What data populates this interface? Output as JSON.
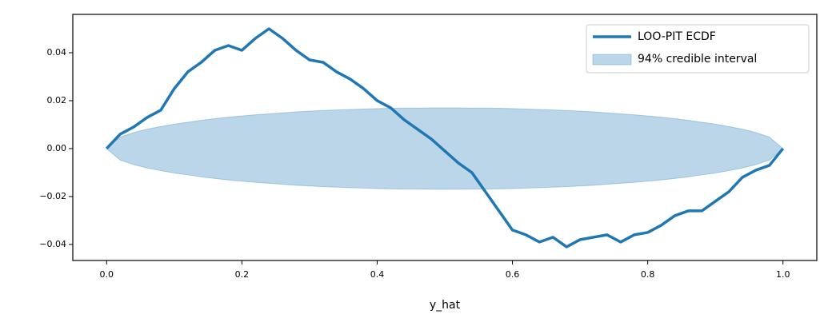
{
  "chart_data": {
    "type": "line_band",
    "x_label": "y_hat",
    "x": [
      0,
      0.02,
      0.04,
      0.06,
      0.08,
      0.1,
      0.12,
      0.14,
      0.16,
      0.18,
      0.2,
      0.22,
      0.24,
      0.26,
      0.28,
      0.3,
      0.32,
      0.34,
      0.36,
      0.38,
      0.4,
      0.42,
      0.44,
      0.46,
      0.48,
      0.5,
      0.52,
      0.54,
      0.56,
      0.58,
      0.6,
      0.62,
      0.64,
      0.66,
      0.68,
      0.7,
      0.72,
      0.74,
      0.76,
      0.78,
      0.8,
      0.82,
      0.84,
      0.86,
      0.88,
      0.9,
      0.92,
      0.94,
      0.96,
      0.98,
      1
    ],
    "series": [
      {
        "name": "LOO-PIT ECDF",
        "color": "#1f77b4",
        "values": [
          0,
          0.006,
          0.009,
          0.013,
          0.016,
          0.025,
          0.032,
          0.036,
          0.041,
          0.043,
          0.041,
          0.046,
          0.05,
          0.046,
          0.041,
          0.037,
          0.036,
          0.032,
          0.029,
          0.025,
          0.02,
          0.017,
          0.012,
          0.008,
          0.004,
          -0.001,
          -0.006,
          -0.01,
          -0.018,
          -0.026,
          -0.034,
          -0.036,
          -0.039,
          -0.037,
          -0.041,
          -0.038,
          -0.037,
          -0.036,
          -0.039,
          -0.036,
          -0.035,
          -0.032,
          -0.028,
          -0.026,
          -0.026,
          -0.022,
          -0.018,
          -0.012,
          -0.009,
          -0.007,
          0
        ]
      },
      {
        "name": "94% credible interval",
        "color": "#1f77b4",
        "upper": [
          0,
          0.0048,
          0.0067,
          0.0081,
          0.0092,
          0.0102,
          0.011,
          0.0118,
          0.0125,
          0.0131,
          0.0136,
          0.0141,
          0.0145,
          0.0149,
          0.0153,
          0.0156,
          0.0159,
          0.0161,
          0.0163,
          0.0165,
          0.0167,
          0.0168,
          0.0169,
          0.0169,
          0.017,
          0.017,
          0.017,
          0.0169,
          0.0169,
          0.0168,
          0.0167,
          0.0165,
          0.0163,
          0.0161,
          0.0159,
          0.0156,
          0.0153,
          0.0149,
          0.0145,
          0.0141,
          0.0136,
          0.0131,
          0.0125,
          0.0118,
          0.011,
          0.0102,
          0.0092,
          0.0081,
          0.0067,
          0.0048,
          0
        ],
        "lower": [
          0,
          -0.0048,
          -0.0067,
          -0.0081,
          -0.0092,
          -0.0102,
          -0.011,
          -0.0118,
          -0.0125,
          -0.0131,
          -0.0136,
          -0.0141,
          -0.0145,
          -0.0149,
          -0.0153,
          -0.0156,
          -0.0159,
          -0.0161,
          -0.0163,
          -0.0165,
          -0.0167,
          -0.0168,
          -0.0169,
          -0.0169,
          -0.017,
          -0.017,
          -0.017,
          -0.0169,
          -0.0169,
          -0.0168,
          -0.0167,
          -0.0165,
          -0.0163,
          -0.0161,
          -0.0159,
          -0.0156,
          -0.0153,
          -0.0149,
          -0.0145,
          -0.0141,
          -0.0136,
          -0.0131,
          -0.0125,
          -0.0118,
          -0.011,
          -0.0102,
          -0.0092,
          -0.0081,
          -0.0067,
          -0.0048,
          0
        ]
      }
    ],
    "xlim": [
      -0.05,
      1.05
    ],
    "ylim": [
      -0.0467,
      0.056
    ],
    "xticks": [
      {
        "value": 0,
        "label": "0.0"
      },
      {
        "value": 0.2,
        "label": "0.2"
      },
      {
        "value": 0.4,
        "label": "0.4"
      },
      {
        "value": 0.6,
        "label": "0.6"
      },
      {
        "value": 0.8,
        "label": "0.8"
      },
      {
        "value": 1,
        "label": "1.0"
      }
    ],
    "yticks": [
      {
        "value": -0.04,
        "label": "−0.04"
      },
      {
        "value": -0.02,
        "label": "−0.02"
      },
      {
        "value": 0,
        "label": "0.00"
      },
      {
        "value": 0.02,
        "label": "0.02"
      },
      {
        "value": 0.04,
        "label": "0.04"
      }
    ],
    "legend": "upper right"
  }
}
